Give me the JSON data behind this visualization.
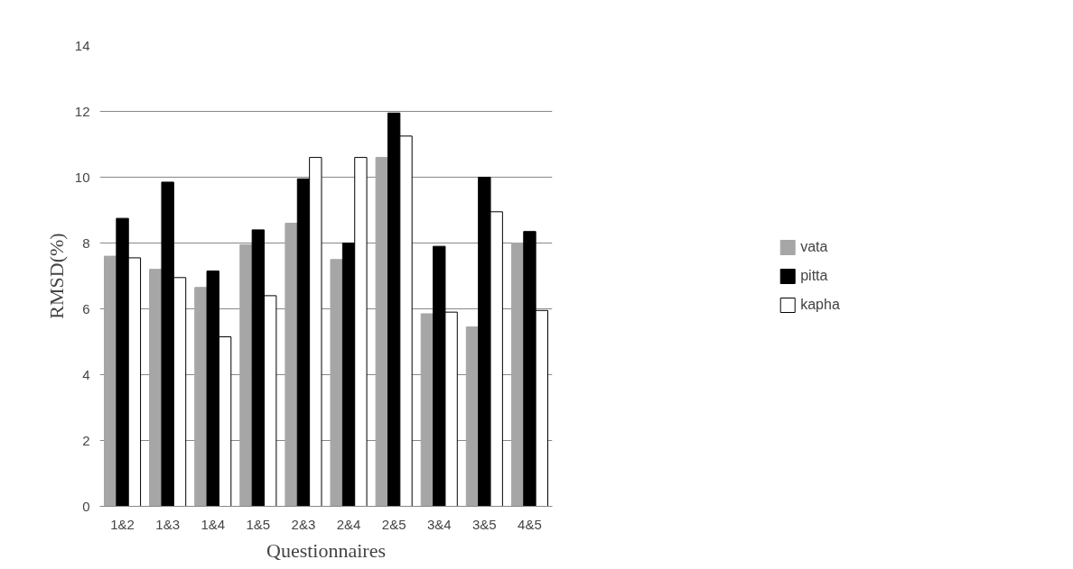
{
  "chart_data": {
    "type": "bar",
    "xlabel": "Questionnaires",
    "ylabel": "RMSD(%)",
    "categories": [
      "1&2",
      "1&3",
      "1&4",
      "1&5",
      "2&3",
      "2&4",
      "2&5",
      "3&4",
      "3&5",
      "4&5"
    ],
    "series": [
      {
        "name": "vata",
        "color": "#a6a6a6",
        "values": [
          7.6,
          7.2,
          6.65,
          7.95,
          8.6,
          7.5,
          10.6,
          5.85,
          5.45,
          8.0
        ]
      },
      {
        "name": "pitta",
        "color": "#000000",
        "values": [
          8.75,
          9.85,
          7.15,
          8.4,
          9.95,
          8.0,
          11.95,
          7.9,
          10.0,
          8.35
        ]
      },
      {
        "name": "kapha",
        "color": "#ffffff",
        "values": [
          7.55,
          6.95,
          5.15,
          6.4,
          10.6,
          10.6,
          11.25,
          5.9,
          8.95,
          5.95
        ]
      }
    ],
    "ylim": [
      0,
      14
    ],
    "yticks": [
      0,
      2,
      4,
      6,
      8,
      10,
      12,
      14
    ],
    "grid": "y",
    "legend": "right"
  }
}
